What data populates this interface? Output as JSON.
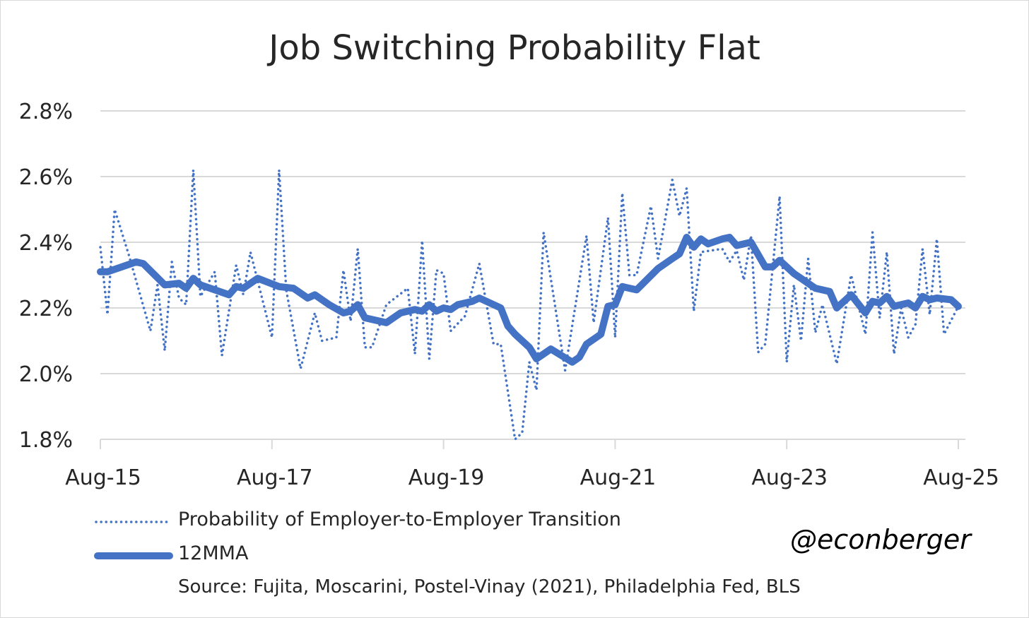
{
  "chart_data": {
    "type": "line",
    "title": "Job Switching Probability Flat",
    "xlabel": "",
    "ylabel": "",
    "x_units": "months since Aug-15",
    "x_range": [
      0,
      120
    ],
    "ylim": [
      1.8,
      2.8
    ],
    "y_ticks": [
      1.8,
      2.0,
      2.2,
      2.4,
      2.6,
      2.8
    ],
    "y_tick_labels": [
      "1.8%",
      "2.0%",
      "2.2%",
      "2.4%",
      "2.6%",
      "2.8%"
    ],
    "x_ticks": [
      0,
      24,
      48,
      72,
      96,
      120
    ],
    "x_tick_labels": [
      "Aug-15",
      "Aug-17",
      "Aug-19",
      "Aug-21",
      "Aug-23",
      "Aug-25"
    ],
    "grid": true,
    "legend_placement": "bottom-left",
    "series": [
      {
        "name": "Probability of Employer-to-Employer Transition",
        "style": "dotted",
        "color": "#4472c4",
        "x": [
          0,
          1,
          2,
          4,
          7,
          8,
          9,
          10,
          11,
          12,
          13,
          14,
          16,
          17,
          19,
          20,
          21,
          24,
          25,
          26,
          28,
          30,
          31,
          33,
          34,
          35,
          36,
          37,
          38,
          40,
          43,
          44,
          45,
          46,
          47,
          48,
          49,
          51,
          53,
          55,
          56,
          58,
          59,
          60,
          61,
          62,
          65,
          68,
          69,
          71,
          72,
          73,
          74,
          75,
          77,
          78,
          80,
          81,
          82,
          83,
          84,
          87,
          88,
          89,
          90,
          91,
          92,
          93,
          95,
          96,
          97,
          98,
          99,
          100,
          101,
          103,
          105,
          107,
          108,
          109,
          110,
          111,
          112,
          113,
          114,
          115,
          116,
          117,
          118,
          120
        ],
        "values": [
          2.385,
          2.18,
          2.5,
          2.36,
          2.13,
          2.27,
          2.07,
          2.34,
          2.23,
          2.21,
          2.62,
          2.235,
          2.31,
          2.055,
          2.33,
          2.24,
          2.37,
          2.11,
          2.62,
          2.255,
          2.015,
          2.185,
          2.1,
          2.11,
          2.315,
          2.16,
          2.38,
          2.08,
          2.08,
          2.21,
          2.26,
          2.06,
          2.405,
          2.045,
          2.315,
          2.305,
          2.13,
          2.175,
          2.335,
          2.09,
          2.09,
          1.8,
          1.82,
          2.035,
          1.95,
          2.43,
          2.01,
          2.42,
          2.155,
          2.475,
          2.11,
          2.55,
          2.3,
          2.3,
          2.51,
          2.35,
          2.59,
          2.48,
          2.565,
          2.19,
          2.37,
          2.38,
          2.34,
          2.375,
          2.285,
          2.42,
          2.065,
          2.09,
          2.54,
          2.035,
          2.27,
          2.1,
          2.35,
          2.125,
          2.21,
          2.03,
          2.3,
          2.12,
          2.43,
          2.17,
          2.37,
          2.06,
          2.2,
          2.11,
          2.15,
          2.38,
          2.18,
          2.41,
          2.12,
          2.205
        ]
      },
      {
        "name": "12MMA",
        "style": "solid-thick",
        "color": "#4472c4",
        "x": [
          0,
          1,
          3,
          5,
          6,
          9,
          11,
          12,
          13,
          14,
          16,
          18,
          19,
          20,
          22,
          25,
          27,
          29,
          30,
          32,
          34,
          35,
          36,
          37,
          40,
          42,
          44,
          45,
          46,
          47,
          48,
          49,
          50,
          52,
          53,
          56,
          57,
          58,
          60,
          61,
          63,
          66,
          67,
          68,
          70,
          71,
          72,
          73,
          75,
          78,
          80,
          81,
          82,
          83,
          84,
          85,
          87,
          88,
          89,
          91,
          93,
          94,
          95,
          97,
          98,
          99,
          100,
          102,
          103,
          105,
          107,
          108,
          109,
          110,
          111,
          113,
          114,
          115,
          116,
          117,
          119,
          120
        ],
        "values": [
          2.31,
          2.31,
          2.325,
          2.34,
          2.335,
          2.27,
          2.275,
          2.26,
          2.29,
          2.27,
          2.255,
          2.24,
          2.265,
          2.26,
          2.29,
          2.265,
          2.26,
          2.23,
          2.24,
          2.21,
          2.185,
          2.19,
          2.21,
          2.17,
          2.155,
          2.185,
          2.195,
          2.19,
          2.21,
          2.19,
          2.2,
          2.195,
          2.21,
          2.22,
          2.23,
          2.2,
          2.145,
          2.12,
          2.08,
          2.045,
          2.075,
          2.035,
          2.05,
          2.09,
          2.12,
          2.205,
          2.21,
          2.265,
          2.255,
          2.32,
          2.35,
          2.365,
          2.415,
          2.385,
          2.41,
          2.395,
          2.41,
          2.415,
          2.39,
          2.4,
          2.325,
          2.325,
          2.345,
          2.305,
          2.29,
          2.275,
          2.26,
          2.25,
          2.2,
          2.24,
          2.185,
          2.22,
          2.215,
          2.235,
          2.205,
          2.215,
          2.2,
          2.235,
          2.225,
          2.23,
          2.225,
          2.205
        ]
      }
    ],
    "annotations": [
      "@econberger",
      "Source: Fujita, Moscarini, Postel-Vinay (2021), Philadelphia Fed, BLS"
    ]
  }
}
